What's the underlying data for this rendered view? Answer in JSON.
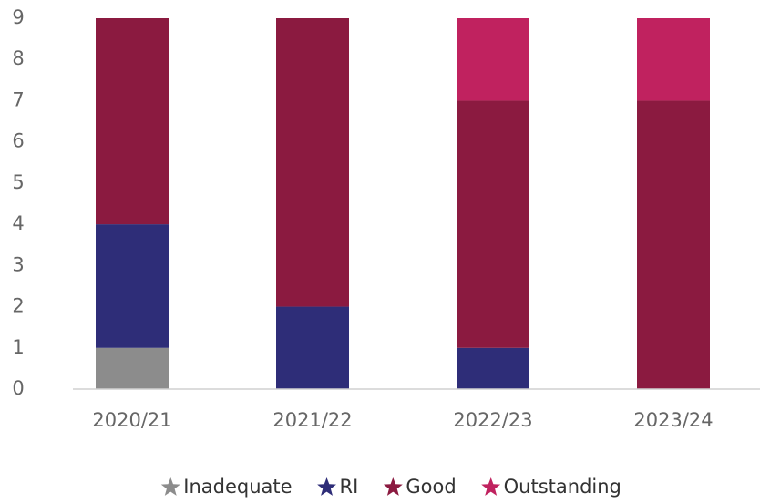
{
  "chart_data": {
    "type": "stacked_bar",
    "categories": [
      "2020/21",
      "2021/22",
      "2022/23",
      "2023/24"
    ],
    "series": [
      {
        "name": "Inadequate",
        "color": "#8c8c8c",
        "values": [
          1,
          0,
          0,
          0
        ]
      },
      {
        "name": "RI",
        "color": "#2e2d78",
        "values": [
          3,
          2,
          1,
          0
        ]
      },
      {
        "name": "Good",
        "color": "#8b1a40",
        "values": [
          5,
          7,
          6,
          7
        ]
      },
      {
        "name": "Outstanding",
        "color": "#c0225f",
        "values": [
          0,
          0,
          2,
          2
        ]
      }
    ],
    "ylim": [
      0,
      9
    ],
    "yticks": [
      0,
      1,
      2,
      3,
      4,
      5,
      6,
      7,
      8,
      9
    ],
    "legend": "bottom",
    "grid": false
  }
}
